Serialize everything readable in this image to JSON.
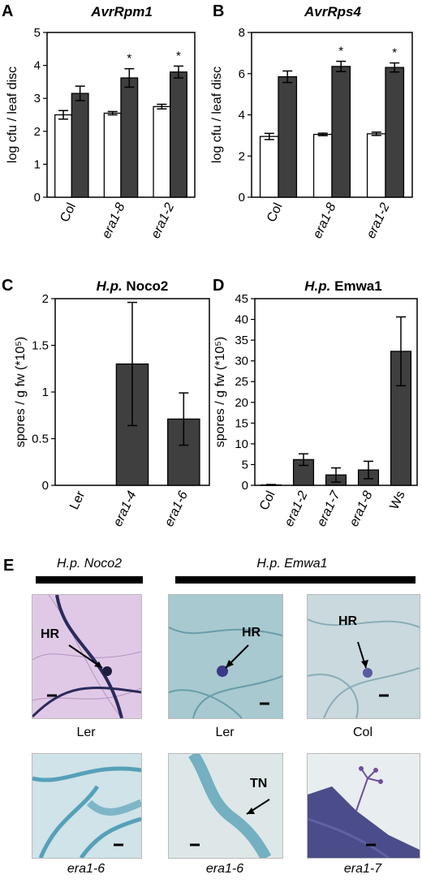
{
  "colors": {
    "open_bar": "#ffffff",
    "filled_bar": "#3f3f3f",
    "axis": "#000000"
  },
  "chart_data": [
    {
      "panel": "A",
      "type": "bar",
      "title": "AvrRpm1",
      "ylabel": "log cfu / leaf disc",
      "ylim": [
        0,
        5
      ],
      "yticks": [
        "0",
        "1",
        "2",
        "3",
        "4",
        "5"
      ],
      "categories": [
        "Col",
        "era1-8",
        "era1-2"
      ],
      "series": [
        {
          "values": [
            2.5,
            2.55,
            2.75
          ],
          "errors": [
            0.13,
            0.05,
            0.07
          ]
        },
        {
          "values": [
            3.15,
            3.62,
            3.8
          ],
          "errors": [
            0.22,
            0.28,
            0.18
          ]
        }
      ],
      "annotations": [
        "*",
        "*"
      ]
    },
    {
      "panel": "B",
      "type": "bar",
      "title": "AvrRps4",
      "ylabel": "log cfu / leaf disc",
      "ylim": [
        0,
        8
      ],
      "yticks": [
        "0",
        "2",
        "4",
        "6",
        "8"
      ],
      "categories": [
        "Col",
        "era1-8",
        "era1-2"
      ],
      "series": [
        {
          "values": [
            2.95,
            3.05,
            3.08
          ],
          "errors": [
            0.15,
            0.06,
            0.08
          ]
        },
        {
          "values": [
            5.85,
            6.35,
            6.3
          ],
          "errors": [
            0.28,
            0.25,
            0.22
          ]
        }
      ],
      "annotations": [
        "*",
        "*"
      ]
    },
    {
      "panel": "C",
      "type": "bar",
      "title": "H.p. Noco2",
      "ylabel": "spores / g fw (*10⁵)",
      "ylim": [
        0,
        2
      ],
      "yticks": [
        "0",
        "0.5",
        "1",
        "1.5",
        "2"
      ],
      "categories": [
        "Ler",
        "era1-4",
        "era1-6"
      ],
      "series": [
        {
          "values": [
            0,
            1.3,
            0.71
          ],
          "errors": [
            0,
            0.66,
            0.28
          ]
        }
      ]
    },
    {
      "panel": "D",
      "type": "bar",
      "title": "H.p. Emwa1",
      "ylabel": "spores / g fw (*10⁵)",
      "ylim": [
        0,
        45
      ],
      "yticks": [
        "0",
        "5",
        "10",
        "15",
        "20",
        "25",
        "30",
        "35",
        "40",
        "45"
      ],
      "categories": [
        "Col",
        "era1-2",
        "era1-7",
        "era1-8",
        "Ws"
      ],
      "series": [
        {
          "values": [
            0.1,
            6.2,
            2.5,
            3.7,
            32.3
          ],
          "errors": [
            0.1,
            1.4,
            1.7,
            2.1,
            8.3
          ]
        }
      ]
    }
  ],
  "panel_e": {
    "label": "E",
    "header_noco2": "H.p. Noco2",
    "header_emwa1": "H.p. Emwa1",
    "row1": [
      {
        "caption": "Ler",
        "annotation": "HR"
      },
      {
        "caption": "Ler",
        "annotation": "HR"
      },
      {
        "caption": "Col",
        "annotation": "HR"
      }
    ],
    "row2": [
      {
        "caption": "era1-6",
        "annotation": ""
      },
      {
        "caption": "era1-6",
        "annotation": "TN"
      },
      {
        "caption": "era1-7",
        "annotation": ""
      }
    ]
  }
}
